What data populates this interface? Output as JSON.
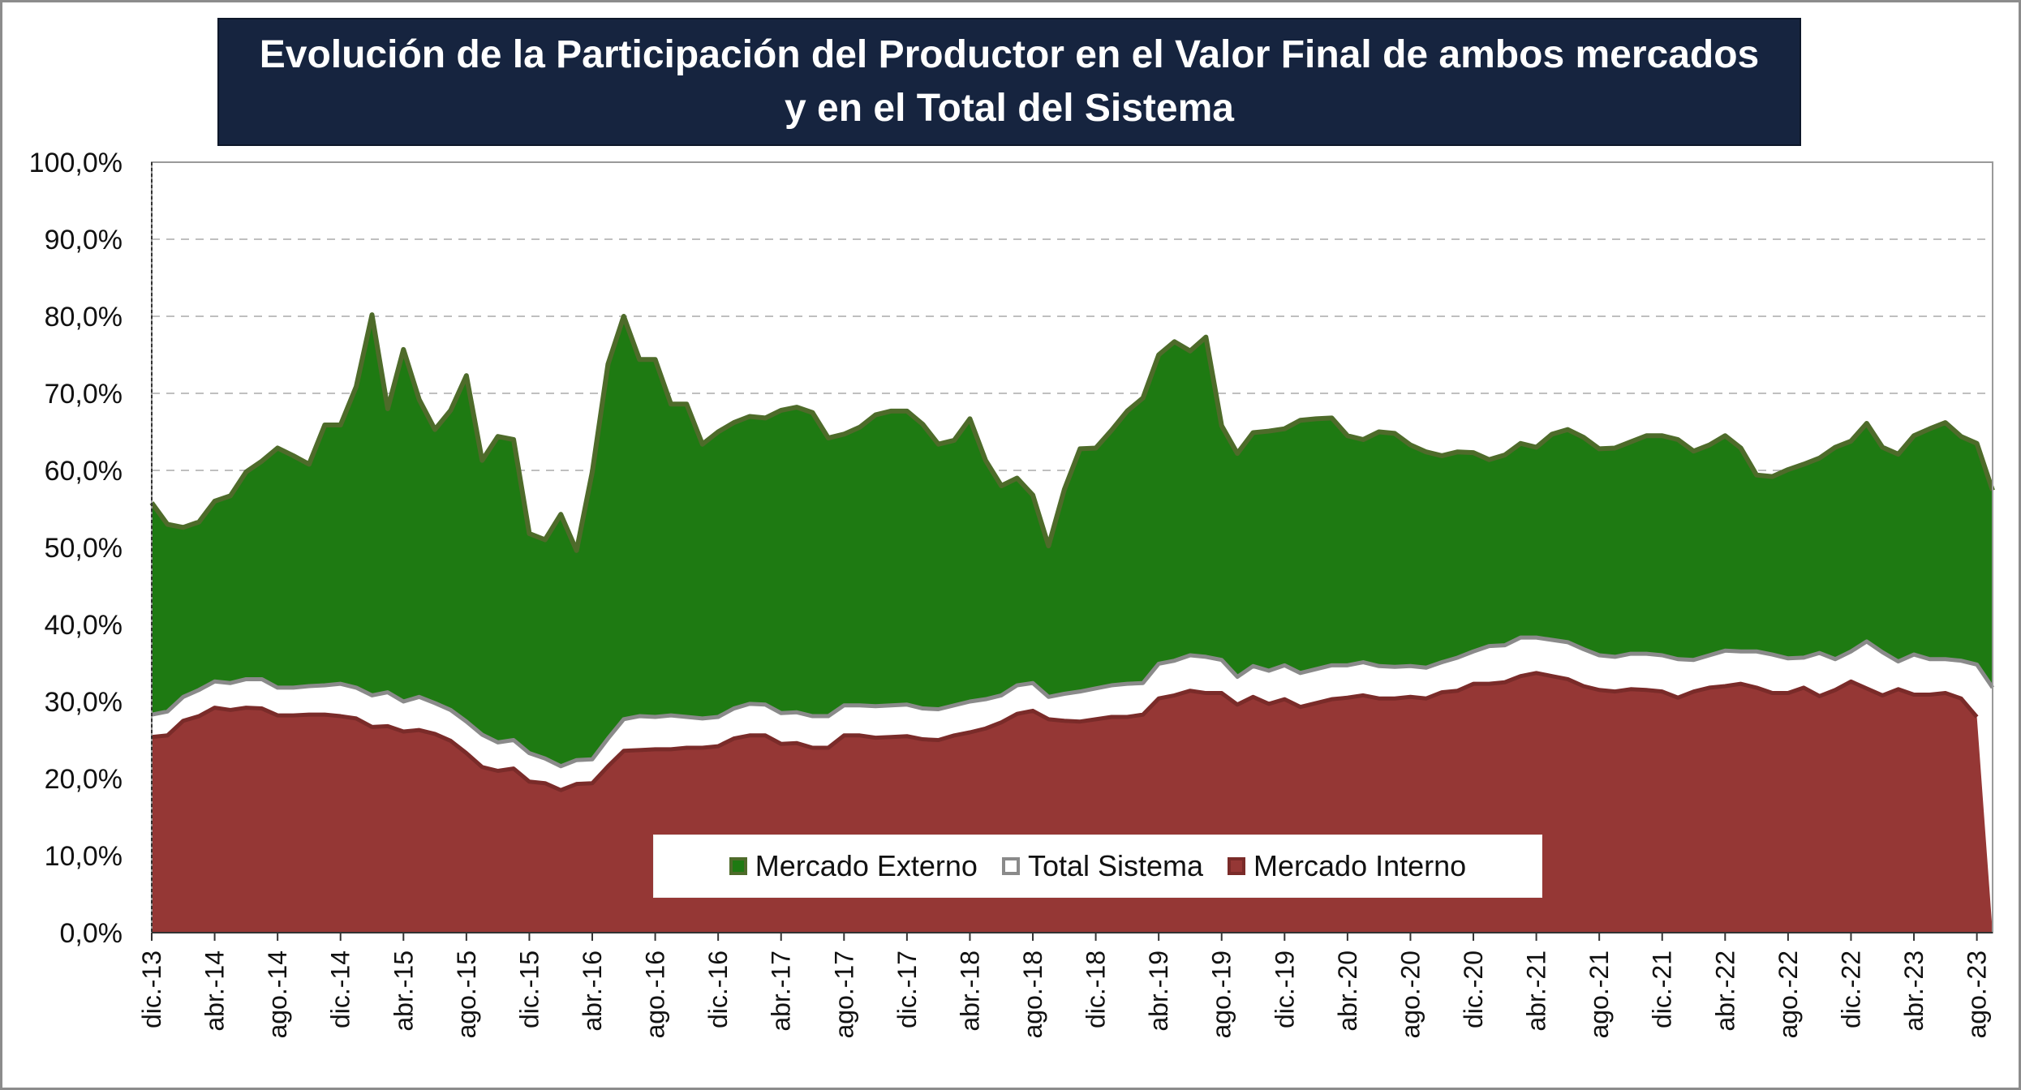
{
  "chart_title": {
    "line1": "Evolución de la Participación del Productor en el Valor Final de ambos mercados",
    "line2": "y en el Total del Sistema"
  },
  "chart_data": {
    "type": "area",
    "title": "Evolución de la Participación del Productor en el Valor Final de ambos mercados y en el Total del Sistema",
    "xlabel": "",
    "ylabel": "",
    "ylim": [
      0,
      100
    ],
    "yticks": [
      "0,0%",
      "10,0%",
      "20,0%",
      "30,0%",
      "40,0%",
      "50,0%",
      "60,0%",
      "70,0%",
      "80,0%",
      "90,0%",
      "100,0%"
    ],
    "grid": true,
    "legend_position": "bottom-center",
    "x_tick_labels": [
      "dic.-13",
      "abr.-14",
      "ago.-14",
      "dic.-14",
      "abr.-15",
      "ago.-15",
      "dic.-15",
      "abr.-16",
      "ago.-16",
      "dic.-16",
      "abr.-17",
      "ago.-17",
      "dic.-17",
      "abr.-18",
      "ago.-18",
      "dic.-18",
      "abr.-19",
      "ago.-19",
      "dic.-19",
      "abr.-20",
      "ago.-20",
      "dic.-20",
      "abr.-21",
      "ago.-21",
      "dic.-21",
      "abr.-22",
      "ago.-22",
      "dic.-22",
      "abr.-23",
      "ago.-23"
    ],
    "series": [
      {
        "name": "Mercado Externo",
        "color": "#1e7a12",
        "line_color": "#4e6b2a",
        "values": [
          55.8,
          53.0,
          52.6,
          53.3,
          56.0,
          56.7,
          59.8,
          61.2,
          62.9,
          61.9,
          60.8,
          65.9,
          65.9,
          70.9,
          80.2,
          68.0,
          75.7,
          69.2,
          65.3,
          67.8,
          72.3,
          61.3,
          64.4,
          64.0,
          51.8,
          51.0,
          54.3,
          49.6,
          59.8,
          73.8,
          80.0,
          74.4,
          74.4,
          68.6,
          68.6,
          63.4,
          65.0,
          66.2,
          67.0,
          66.8,
          67.8,
          68.2,
          67.5,
          64.2,
          64.7,
          65.6,
          67.2,
          67.7,
          67.7,
          66.0,
          63.4,
          63.9,
          66.7,
          61.3,
          58.0,
          59.0,
          56.8,
          50.2,
          57.5,
          62.8,
          62.9,
          65.2,
          67.7,
          69.4,
          75.0,
          76.7,
          75.5,
          77.3,
          65.8,
          62.2,
          64.9,
          65.1,
          65.4,
          66.5,
          66.7,
          66.8,
          64.5,
          64.0,
          65.0,
          64.8,
          63.3,
          62.4,
          61.9,
          62.4,
          62.3,
          61.4,
          62.0,
          63.5,
          63.0,
          64.7,
          65.3,
          64.3,
          62.8,
          62.9,
          63.7,
          64.5,
          64.5,
          64.0,
          62.5,
          63.3,
          64.5,
          62.9,
          59.4,
          59.2,
          60.1,
          60.8,
          61.6,
          63.0,
          63.8,
          66.1,
          63.0,
          62.1,
          64.5,
          65.4,
          66.2,
          64.4,
          63.5,
          57.4
        ]
      },
      {
        "name": "Total Sistema",
        "color": "#ffffff",
        "line_color": "#8a8a8a",
        "values": [
          28.3,
          28.7,
          30.6,
          31.5,
          32.6,
          32.4,
          32.9,
          32.9,
          31.8,
          31.8,
          32.0,
          32.1,
          32.3,
          31.8,
          30.8,
          31.2,
          30.0,
          30.6,
          29.8,
          28.9,
          27.4,
          25.7,
          24.7,
          25.0,
          23.3,
          22.6,
          21.6,
          22.4,
          22.5,
          25.2,
          27.7,
          28.1,
          28.0,
          28.2,
          28.0,
          27.8,
          28.0,
          29.1,
          29.7,
          29.6,
          28.5,
          28.6,
          28.1,
          28.1,
          29.5,
          29.5,
          29.4,
          29.5,
          29.6,
          29.1,
          29.0,
          29.5,
          30.0,
          30.3,
          30.8,
          32.1,
          32.4,
          30.6,
          31.0,
          31.3,
          31.7,
          32.1,
          32.3,
          32.4,
          34.9,
          35.3,
          36.0,
          35.8,
          35.4,
          33.2,
          34.6,
          34.0,
          34.7,
          33.7,
          34.2,
          34.7,
          34.7,
          35.1,
          34.6,
          34.5,
          34.6,
          34.4,
          35.1,
          35.7,
          36.5,
          37.2,
          37.3,
          38.3,
          38.3,
          38.0,
          37.7,
          36.8,
          36.0,
          35.8,
          36.2,
          36.2,
          36.0,
          35.5,
          35.4,
          36.0,
          36.6,
          36.5,
          36.5,
          36.1,
          35.6,
          35.7,
          36.3,
          35.5,
          36.5,
          37.8,
          36.4,
          35.2,
          36.1,
          35.5,
          35.5,
          35.3,
          34.8,
          31.8
        ]
      },
      {
        "name": "Mercado Interno",
        "color": "#953735",
        "line_color": "#7a2b29",
        "values": [
          25.4,
          25.6,
          27.5,
          28.1,
          29.2,
          28.9,
          29.2,
          29.1,
          28.2,
          28.2,
          28.3,
          28.3,
          28.1,
          27.8,
          26.7,
          26.8,
          26.1,
          26.3,
          25.8,
          24.9,
          23.3,
          21.5,
          21.0,
          21.3,
          19.6,
          19.4,
          18.5,
          19.3,
          19.4,
          21.6,
          23.6,
          23.7,
          23.8,
          23.8,
          24.0,
          24.0,
          24.2,
          25.2,
          25.6,
          25.6,
          24.5,
          24.6,
          24.0,
          24.0,
          25.6,
          25.6,
          25.3,
          25.4,
          25.5,
          25.1,
          25.0,
          25.6,
          26.0,
          26.5,
          27.3,
          28.4,
          28.8,
          27.7,
          27.5,
          27.4,
          27.7,
          28.0,
          28.0,
          28.3,
          30.4,
          30.8,
          31.4,
          31.1,
          31.1,
          29.6,
          30.6,
          29.7,
          30.3,
          29.3,
          29.8,
          30.3,
          30.5,
          30.8,
          30.4,
          30.4,
          30.6,
          30.4,
          31.2,
          31.4,
          32.3,
          32.3,
          32.5,
          33.3,
          33.7,
          33.3,
          32.9,
          32.0,
          31.5,
          31.3,
          31.6,
          31.5,
          31.3,
          30.5,
          31.3,
          31.8,
          32.0,
          32.3,
          31.8,
          31.1,
          31.1,
          31.8,
          30.7,
          31.5,
          32.6,
          31.7,
          30.8,
          31.6,
          30.9,
          30.9,
          31.1,
          30.4,
          28.0
        ]
      }
    ]
  }
}
